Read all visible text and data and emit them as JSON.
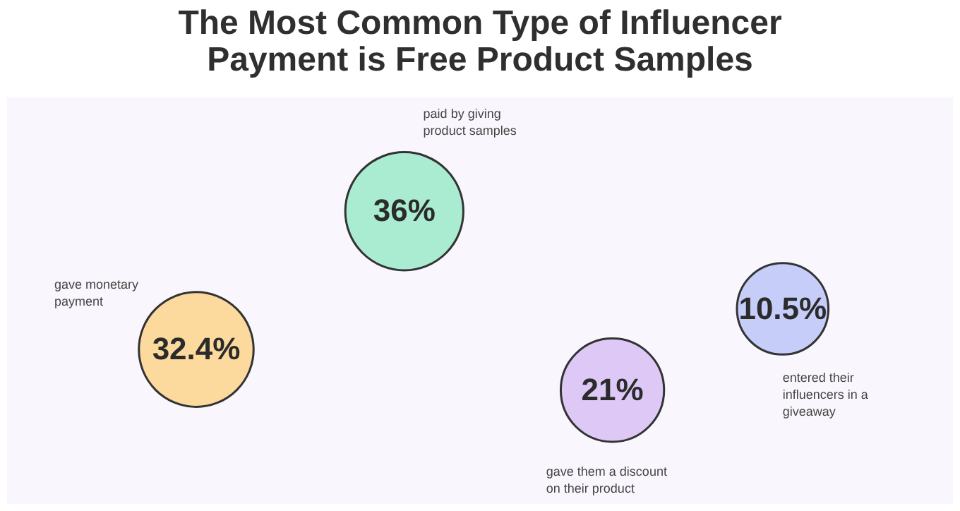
{
  "chart_data": {
    "type": "other",
    "title": [
      "The Most Common Type of Influencer",
      "Payment is Free Product Samples"
    ],
    "categories": [
      "gave monetary payment",
      "paid by giving  product samples",
      "gave them a discount on their product",
      "entered their influencers in a giveaway"
    ],
    "values": [
      32.4,
      36,
      21,
      10.5
    ],
    "value_labels": [
      "32.4%",
      "36%",
      "21%",
      "10.5%"
    ],
    "colors": [
      "#fcd99c",
      "#a9ecd2",
      "#ddc8f6",
      "#c6cdf8"
    ]
  }
}
